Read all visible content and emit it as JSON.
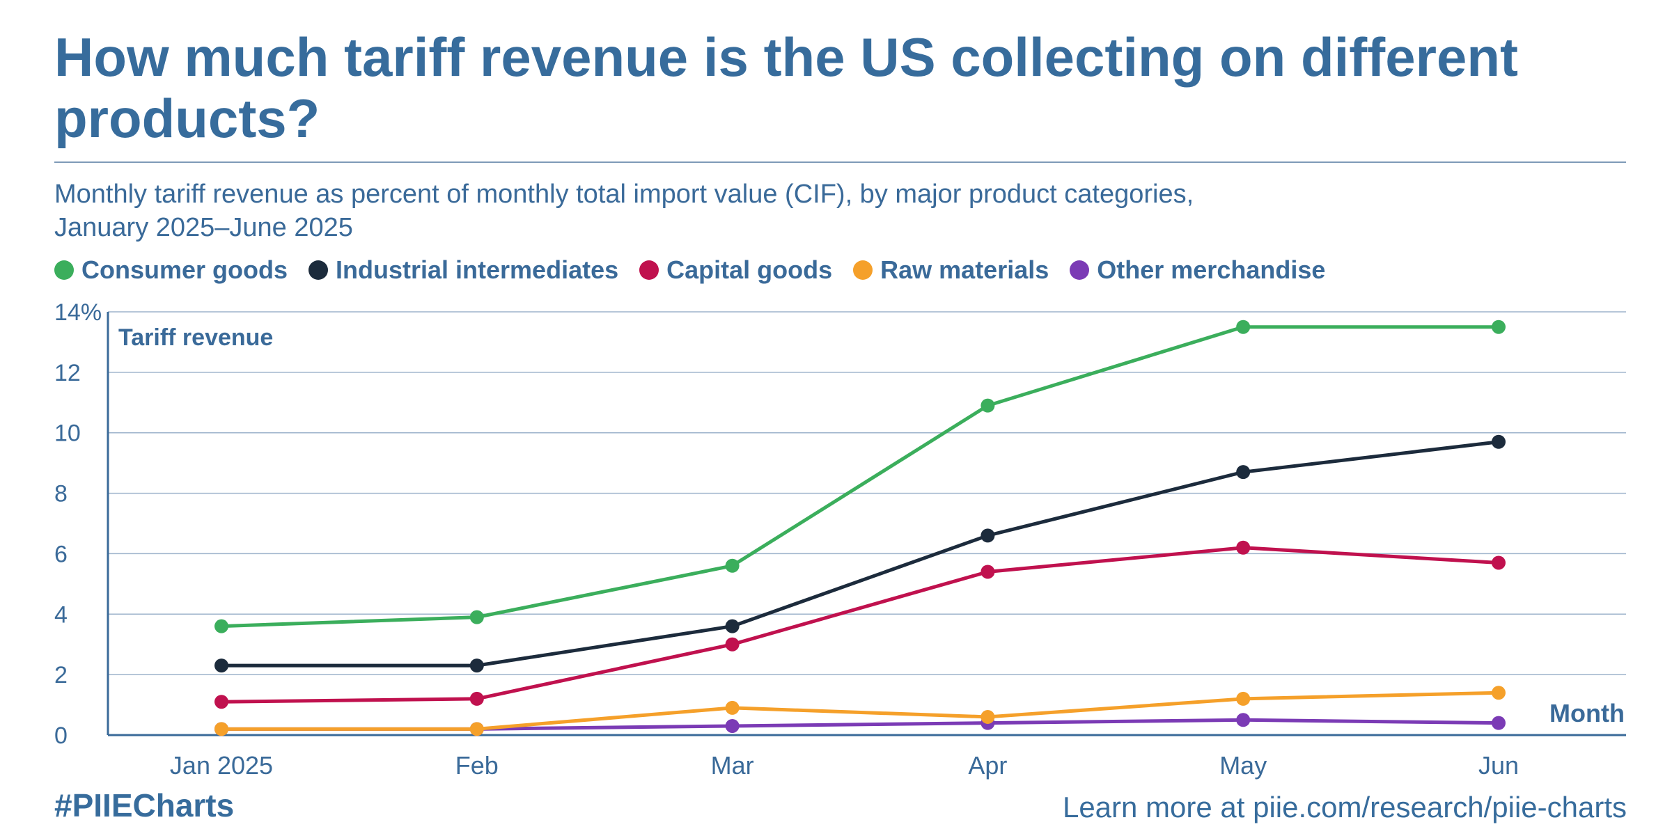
{
  "header": {
    "title": "How much tariff revenue is the US collecting on different products?",
    "subtitle_line1": "Monthly tariff revenue as percent of monthly total import value (CIF), by major product categories,",
    "subtitle_line2": "January 2025–June 2025"
  },
  "footer": {
    "hashtag": "#PIIECharts",
    "link_text": "Learn more at piie.com/research/piie-charts"
  },
  "chart_data": {
    "type": "line",
    "ylabel": "Tariff revenue",
    "xlabel": "Month",
    "ylim": [
      0,
      14
    ],
    "yticks": [
      "0",
      "2",
      "4",
      "6",
      "8",
      "10",
      "12",
      "14%"
    ],
    "categories": [
      "Jan 2025",
      "Feb",
      "Mar",
      "Apr",
      "May",
      "Jun"
    ],
    "grid": true,
    "legend_position": "top",
    "series": [
      {
        "name": "Consumer goods",
        "color": "#3bae5c",
        "values": [
          3.6,
          3.9,
          5.6,
          10.9,
          13.5,
          13.5
        ]
      },
      {
        "name": "Industrial intermediates",
        "color": "#1c2b3c",
        "values": [
          2.3,
          2.3,
          3.6,
          6.6,
          8.7,
          9.7
        ]
      },
      {
        "name": "Capital goods",
        "color": "#c0114e",
        "values": [
          1.1,
          1.2,
          3.0,
          5.4,
          6.2,
          5.7
        ]
      },
      {
        "name": "Raw materials",
        "color": "#f5a02a",
        "values": [
          0.2,
          0.2,
          0.9,
          0.6,
          1.2,
          1.4
        ]
      },
      {
        "name": "Other merchandise",
        "color": "#7b3bb5",
        "values": [
          0.2,
          0.2,
          0.3,
          0.4,
          0.5,
          0.4
        ]
      }
    ]
  }
}
